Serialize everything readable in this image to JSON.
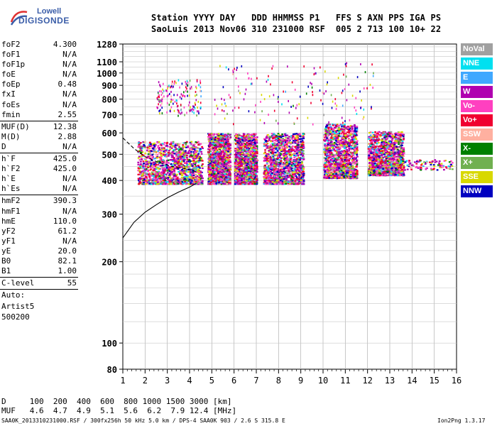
{
  "logo": {
    "line1": "Lowell",
    "line2": "DIGISONDE"
  },
  "header": {
    "line1": "Station YYYY DAY   DDD HHMMSS P1   FFS S AXN PPS IGA PS",
    "line2": "SaoLuis 2013 Nov06 310 231000 RSF  005 2 713 100 10+ 22"
  },
  "params": {
    "group1": [
      {
        "name": "foF2",
        "value": "4.300"
      },
      {
        "name": "foF1",
        "value": "N/A"
      },
      {
        "name": "foF1p",
        "value": "N/A"
      },
      {
        "name": "foE",
        "value": "N/A"
      },
      {
        "name": "foEp",
        "value": "0.48"
      },
      {
        "name": "fxI",
        "value": "N/A"
      },
      {
        "name": "foEs",
        "value": "N/A"
      },
      {
        "name": "fmin",
        "value": "2.55"
      }
    ],
    "group2": [
      {
        "name": "MUF(D)",
        "value": "12.38"
      },
      {
        "name": "M(D)",
        "value": "2.88"
      },
      {
        "name": "D",
        "value": "N/A"
      }
    ],
    "group3": [
      {
        "name": "h`F",
        "value": "425.0"
      },
      {
        "name": "h`F2",
        "value": "425.0"
      },
      {
        "name": "h`E",
        "value": "N/A"
      },
      {
        "name": "h`Es",
        "value": "N/A"
      }
    ],
    "group4": [
      {
        "name": "hmF2",
        "value": "390.3"
      },
      {
        "name": "hmF1",
        "value": "N/A"
      },
      {
        "name": "hmE",
        "value": "110.0"
      },
      {
        "name": "yF2",
        "value": "61.2"
      },
      {
        "name": "yF1",
        "value": "N/A"
      },
      {
        "name": "yE",
        "value": "20.0"
      },
      {
        "name": "B0",
        "value": "82.1"
      },
      {
        "name": "B1",
        "value": "1.00"
      }
    ],
    "group5": [
      {
        "name": "C-level",
        "value": "55"
      }
    ],
    "auto": [
      "Auto:",
      "Artist5",
      "500200"
    ]
  },
  "footer": {
    "d_row": "D     100  200  400  600  800 1000 1500 3000 [km]",
    "muf_row": "MUF   4.6  4.7  4.9  5.1  5.6  6.2  7.9 12.4 [MHz]",
    "file_info": "SAA0K_2013310231000.RSF / 300fx256h 50 kHz 5.0 km / DPS-4 SAA0K 903 / 2.6 S 315.8 E",
    "version": "Ion2Png 1.3.17"
  },
  "colors": {
    "NoVal": "#a0a0a0",
    "NNE": "#00e0f0",
    "E": "#40a8ff",
    "W": "#b000b0",
    "Vo-": "#ff40c0",
    "Vo+": "#f00030",
    "SSW": "#ffb0a0",
    "X-": "#008000",
    "X+": "#70b050",
    "SSE": "#d8d800",
    "NNW": "#0000c0"
  },
  "chart_data": {
    "type": "scatter",
    "title": "",
    "xlabel": "",
    "ylabel": "",
    "xlim": [
      1,
      16
    ],
    "x_ticks": [
      1,
      2,
      3,
      4,
      5,
      6,
      7,
      8,
      9,
      10,
      11,
      12,
      13,
      14,
      15,
      16
    ],
    "y_scale": "log",
    "ylim": [
      80,
      1280
    ],
    "y_ticks": [
      80,
      100,
      200,
      300,
      400,
      500,
      600,
      700,
      800,
      900,
      1000,
      1100,
      1280
    ],
    "grid": true,
    "legend_position": "right",
    "legend": [
      "NoVal",
      "NNE",
      "E",
      "W",
      "Vo-",
      "Vo+",
      "SSW",
      "X-",
      "X+",
      "SSE",
      "NNW"
    ],
    "echo_clusters": [
      {
        "x": [
          1.65,
          4.55
        ],
        "y": [
          390,
          560
        ],
        "density": "high"
      },
      {
        "x": [
          4.8,
          5.8
        ],
        "y": [
          390,
          600
        ],
        "density": "high"
      },
      {
        "x": [
          6.0,
          7.0
        ],
        "y": [
          390,
          600
        ],
        "density": "high"
      },
      {
        "x": [
          7.3,
          9.1
        ],
        "y": [
          390,
          600
        ],
        "density": "high"
      },
      {
        "x": [
          10.0,
          11.5
        ],
        "y": [
          410,
          650
        ],
        "density": "high"
      },
      {
        "x": [
          12.0,
          13.6
        ],
        "y": [
          420,
          610
        ],
        "density": "high"
      },
      {
        "x": [
          13.6,
          15.8
        ],
        "y": [
          440,
          480
        ],
        "density": "low"
      },
      {
        "x": [
          2.5,
          4.5
        ],
        "y": [
          700,
          950
        ],
        "density": "sparse"
      },
      {
        "x": [
          5.0,
          12.5
        ],
        "y": [
          650,
          1100
        ],
        "density": "sparse"
      }
    ],
    "profile_line": {
      "freq": [
        1.0,
        1.5,
        2.0,
        2.5,
        3.0,
        3.5,
        4.0,
        4.3
      ],
      "height": [
        245,
        280,
        305,
        325,
        345,
        362,
        378,
        390
      ]
    },
    "trace_line_dashed": {
      "freq": [
        1.0,
        1.5,
        2.0,
        2.5,
        3.0,
        3.5,
        4.0,
        4.3
      ],
      "height": [
        575,
        525,
        490,
        470,
        455,
        445,
        440,
        430
      ]
    }
  }
}
